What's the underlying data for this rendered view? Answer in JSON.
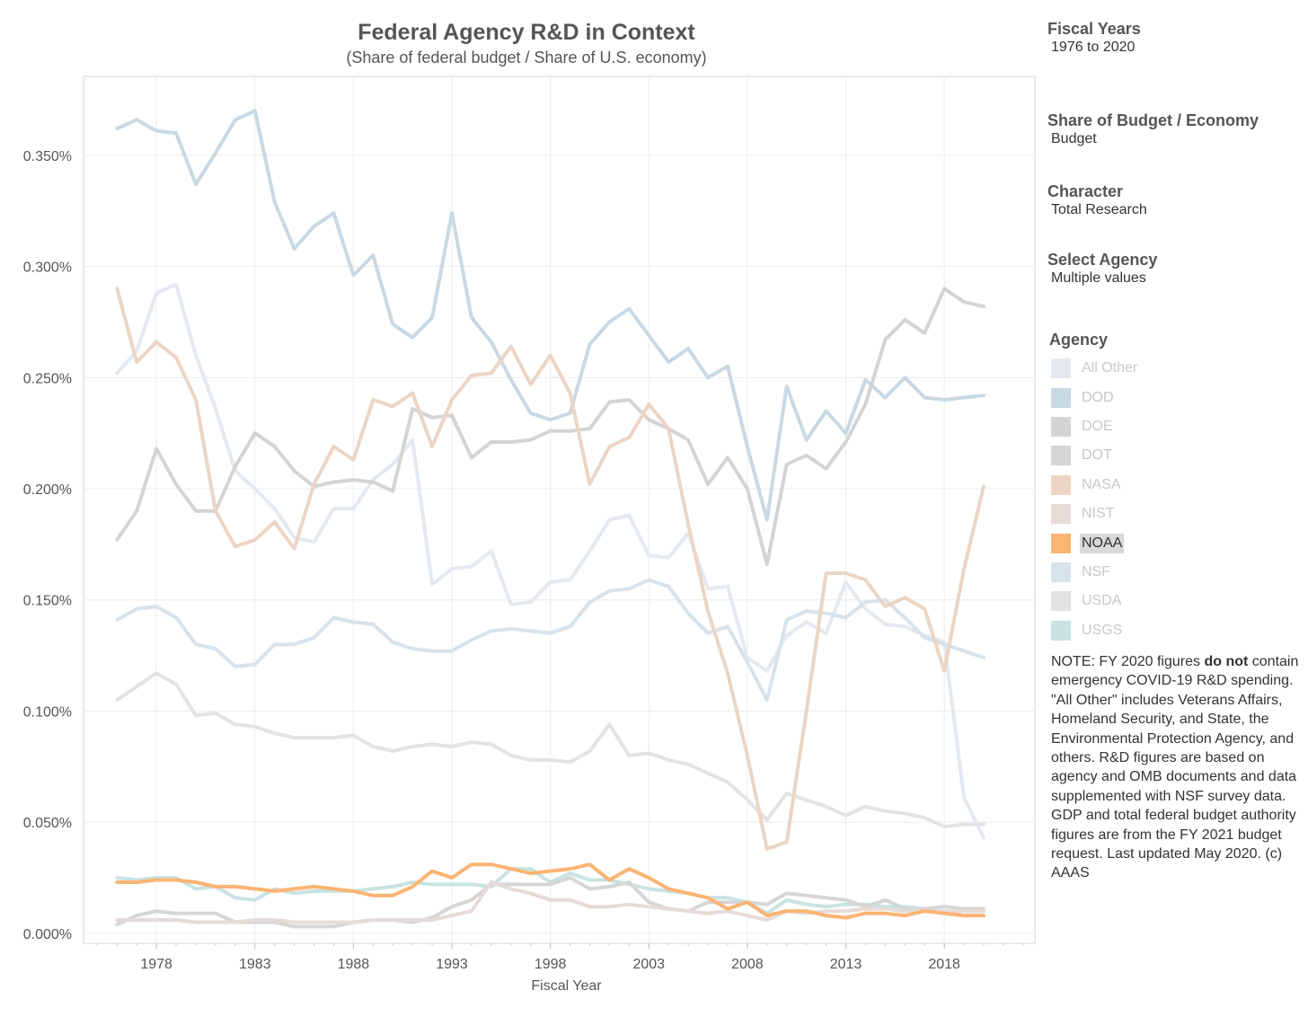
{
  "title": "Federal Agency R&D in Context",
  "subtitle": "(Share of federal budget / Share of U.S. economy)",
  "filters": {
    "fiscal_years": {
      "label": "Fiscal Years",
      "value": "1976 to 2020"
    },
    "share": {
      "label": "Share of Budget / Economy",
      "value": "Budget"
    },
    "character": {
      "label": "Character",
      "value": "Total Research"
    },
    "agency_select": {
      "label": "Select Agency",
      "value": "Multiple values"
    }
  },
  "legend": {
    "title": "Agency",
    "items": [
      {
        "label": "All Other",
        "color": "#e3e9ef",
        "active": false
      },
      {
        "label": "DOD",
        "color": "#c9d9e4",
        "active": false
      },
      {
        "label": "DOE",
        "color": "#d4d4d4",
        "active": false
      },
      {
        "label": "DOT",
        "color": "#d6d6d6",
        "active": false
      },
      {
        "label": "NASA",
        "color": "#ecd5c4",
        "active": false
      },
      {
        "label": "NIST",
        "color": "#e5dcd8",
        "active": false
      },
      {
        "label": "NOAA",
        "color": "#fbb472",
        "active": true
      },
      {
        "label": "NSF",
        "color": "#d7e3eb",
        "active": false
      },
      {
        "label": "USDA",
        "color": "#e3e3e3",
        "active": false
      },
      {
        "label": "USGS",
        "color": "#c8e3e2",
        "active": false
      }
    ]
  },
  "note": {
    "pre": "NOTE: FY 2020 figures ",
    "bold": "do not",
    "post": " contain emergency COVID-19 R&D spending. \"All Other\" includes Veterans Affairs, Homeland Security, and State, the Environmental Protection Agency, and others. R&D figures are based on agency and OMB documents and data supplemented with NSF survey data. GDP and total federal budget authority figures are from the FY 2021 budget request. Last updated May 2020. (c) AAAS"
  },
  "chart_data": {
    "type": "line",
    "xlabel": "Fiscal Year",
    "ylabel": "",
    "x": [
      1976,
      1977,
      1978,
      1979,
      1980,
      1981,
      1982,
      1983,
      1984,
      1985,
      1986,
      1987,
      1988,
      1989,
      1990,
      1991,
      1992,
      1993,
      1994,
      1995,
      1996,
      1997,
      1998,
      1999,
      2000,
      2001,
      2002,
      2003,
      2004,
      2005,
      2006,
      2007,
      2008,
      2009,
      2010,
      2011,
      2012,
      2013,
      2014,
      2015,
      2016,
      2017,
      2018,
      2019,
      2020
    ],
    "xticks": [
      "1978",
      "1983",
      "1988",
      "1993",
      "1998",
      "2003",
      "2008",
      "2013",
      "2018"
    ],
    "xtick_values": [
      1978,
      1983,
      1988,
      1993,
      1998,
      2003,
      2008,
      2013,
      2018
    ],
    "yticks": [
      "0.000%",
      "0.050%",
      "0.100%",
      "0.150%",
      "0.200%",
      "0.250%",
      "0.300%",
      "0.350%"
    ],
    "ytick_values": [
      0,
      0.05,
      0.1,
      0.15,
      0.2,
      0.25,
      0.3,
      0.35
    ],
    "xlim": [
      1974.3,
      2022.6
    ],
    "ylim": [
      -0.0045,
      0.3855
    ],
    "grid": true,
    "highlighted": "NOAA",
    "series": [
      {
        "name": "All Other",
        "color": "#e3e9ef",
        "values": [
          0.252,
          0.262,
          0.288,
          0.292,
          0.26,
          0.236,
          0.208,
          0.2,
          0.191,
          0.178,
          0.176,
          0.191,
          0.191,
          0.204,
          0.211,
          0.222,
          0.157,
          0.164,
          0.165,
          0.172,
          0.148,
          0.149,
          0.158,
          0.159,
          0.172,
          0.186,
          0.188,
          0.17,
          0.169,
          0.18,
          0.155,
          0.156,
          0.124,
          0.118,
          0.134,
          0.14,
          0.135,
          0.158,
          0.146,
          0.139,
          0.138,
          0.134,
          0.131,
          0.061,
          0.043
        ]
      },
      {
        "name": "USDA",
        "color": "#e3e3e3",
        "values": [
          0.105,
          0.111,
          0.117,
          0.112,
          0.098,
          0.099,
          0.094,
          0.093,
          0.09,
          0.088,
          0.088,
          0.088,
          0.089,
          0.084,
          0.082,
          0.084,
          0.085,
          0.084,
          0.086,
          0.085,
          0.08,
          0.078,
          0.078,
          0.077,
          0.082,
          0.094,
          0.08,
          0.081,
          0.078,
          0.076,
          0.072,
          0.068,
          0.06,
          0.051,
          0.063,
          0.06,
          0.057,
          0.053,
          0.057,
          0.055,
          0.054,
          0.052,
          0.048,
          0.049,
          0.049
        ]
      },
      {
        "name": "NSF",
        "color": "#d7e3eb",
        "values": [
          0.141,
          0.146,
          0.147,
          0.142,
          0.13,
          0.128,
          0.12,
          0.121,
          0.13,
          0.13,
          0.133,
          0.142,
          0.14,
          0.139,
          0.131,
          0.128,
          0.127,
          0.127,
          0.132,
          0.136,
          0.137,
          0.136,
          0.135,
          0.138,
          0.149,
          0.154,
          0.155,
          0.159,
          0.156,
          0.144,
          0.135,
          0.138,
          0.122,
          0.105,
          0.141,
          0.145,
          0.144,
          0.142,
          0.149,
          0.15,
          0.142,
          0.133,
          0.13,
          0.127,
          0.124
        ]
      },
      {
        "name": "DOD",
        "color": "#c9d9e4",
        "values": [
          0.362,
          0.366,
          0.361,
          0.36,
          0.337,
          0.351,
          0.366,
          0.37,
          0.329,
          0.308,
          0.318,
          0.324,
          0.296,
          0.305,
          0.274,
          0.268,
          0.277,
          0.324,
          0.277,
          0.266,
          0.249,
          0.234,
          0.231,
          0.234,
          0.265,
          0.275,
          0.281,
          0.269,
          0.257,
          0.263,
          0.25,
          0.255,
          0.219,
          0.186,
          0.246,
          0.222,
          0.235,
          0.225,
          0.249,
          0.241,
          0.25,
          0.241,
          0.24,
          0.241,
          0.242
        ]
      },
      {
        "name": "DOE",
        "color": "#d4d4d4",
        "values": [
          0.177,
          0.19,
          0.218,
          0.202,
          0.19,
          0.19,
          0.21,
          0.225,
          0.219,
          0.208,
          0.201,
          0.203,
          0.204,
          0.203,
          0.199,
          0.236,
          0.232,
          0.233,
          0.214,
          0.221,
          0.221,
          0.222,
          0.226,
          0.226,
          0.227,
          0.239,
          0.24,
          0.231,
          0.227,
          0.222,
          0.202,
          0.214,
          0.2,
          0.166,
          0.211,
          0.215,
          0.209,
          0.221,
          0.238,
          0.267,
          0.276,
          0.27,
          0.29,
          0.284,
          0.282
        ]
      },
      {
        "name": "NASA",
        "color": "#ecd5c4",
        "values": [
          0.29,
          0.257,
          0.266,
          0.259,
          0.24,
          0.19,
          0.174,
          0.177,
          0.185,
          0.173,
          0.202,
          0.219,
          0.213,
          0.24,
          0.237,
          0.243,
          0.219,
          0.24,
          0.251,
          0.252,
          0.264,
          0.247,
          0.26,
          0.243,
          0.202,
          0.219,
          0.223,
          0.238,
          0.227,
          0.184,
          0.145,
          0.117,
          0.08,
          0.038,
          0.041,
          0.1,
          0.162,
          0.162,
          0.159,
          0.147,
          0.151,
          0.146,
          0.118,
          0.164,
          0.201
        ]
      },
      {
        "name": "USGS",
        "color": "#c8e3e2",
        "values": [
          0.025,
          0.024,
          0.025,
          0.025,
          0.02,
          0.021,
          0.016,
          0.015,
          0.02,
          0.018,
          0.019,
          0.019,
          0.019,
          0.02,
          0.021,
          0.023,
          0.022,
          0.022,
          0.022,
          0.021,
          0.029,
          0.029,
          0.023,
          0.027,
          0.024,
          0.024,
          0.022,
          0.02,
          0.019,
          0.018,
          0.016,
          0.016,
          0.014,
          0.009,
          0.015,
          0.013,
          0.012,
          0.013,
          0.013,
          0.012,
          0.012,
          0.011,
          0.009,
          0.01,
          0.01
        ]
      },
      {
        "name": "DOT",
        "color": "#d6d6d6",
        "values": [
          0.004,
          0.008,
          0.01,
          0.009,
          0.009,
          0.009,
          0.005,
          0.005,
          0.005,
          0.003,
          0.003,
          0.003,
          0.005,
          0.006,
          0.006,
          0.005,
          0.007,
          0.012,
          0.015,
          0.022,
          0.022,
          0.022,
          0.022,
          0.025,
          0.02,
          0.021,
          0.023,
          0.014,
          0.011,
          0.01,
          0.014,
          0.014,
          0.014,
          0.013,
          0.018,
          0.017,
          0.016,
          0.015,
          0.012,
          0.015,
          0.011,
          0.011,
          0.012,
          0.011,
          0.011
        ]
      },
      {
        "name": "NIST",
        "color": "#e5dcd8",
        "values": [
          0.006,
          0.006,
          0.006,
          0.006,
          0.005,
          0.005,
          0.005,
          0.006,
          0.006,
          0.005,
          0.005,
          0.005,
          0.005,
          0.006,
          0.006,
          0.006,
          0.006,
          0.008,
          0.01,
          0.023,
          0.02,
          0.018,
          0.015,
          0.015,
          0.012,
          0.012,
          0.013,
          0.012,
          0.011,
          0.01,
          0.009,
          0.01,
          0.008,
          0.006,
          0.01,
          0.009,
          0.01,
          0.01,
          0.011,
          0.011,
          0.01,
          0.01,
          0.01,
          0.01,
          0.01
        ]
      },
      {
        "name": "NOAA",
        "color": "#fbb472",
        "values": [
          0.023,
          0.023,
          0.024,
          0.024,
          0.023,
          0.021,
          0.021,
          0.02,
          0.019,
          0.02,
          0.021,
          0.02,
          0.019,
          0.017,
          0.017,
          0.021,
          0.028,
          0.025,
          0.031,
          0.031,
          0.029,
          0.027,
          0.028,
          0.029,
          0.031,
          0.024,
          0.029,
          0.025,
          0.02,
          0.018,
          0.016,
          0.011,
          0.014,
          0.008,
          0.01,
          0.01,
          0.008,
          0.007,
          0.009,
          0.009,
          0.008,
          0.01,
          0.009,
          0.008,
          0.008
        ]
      }
    ]
  }
}
